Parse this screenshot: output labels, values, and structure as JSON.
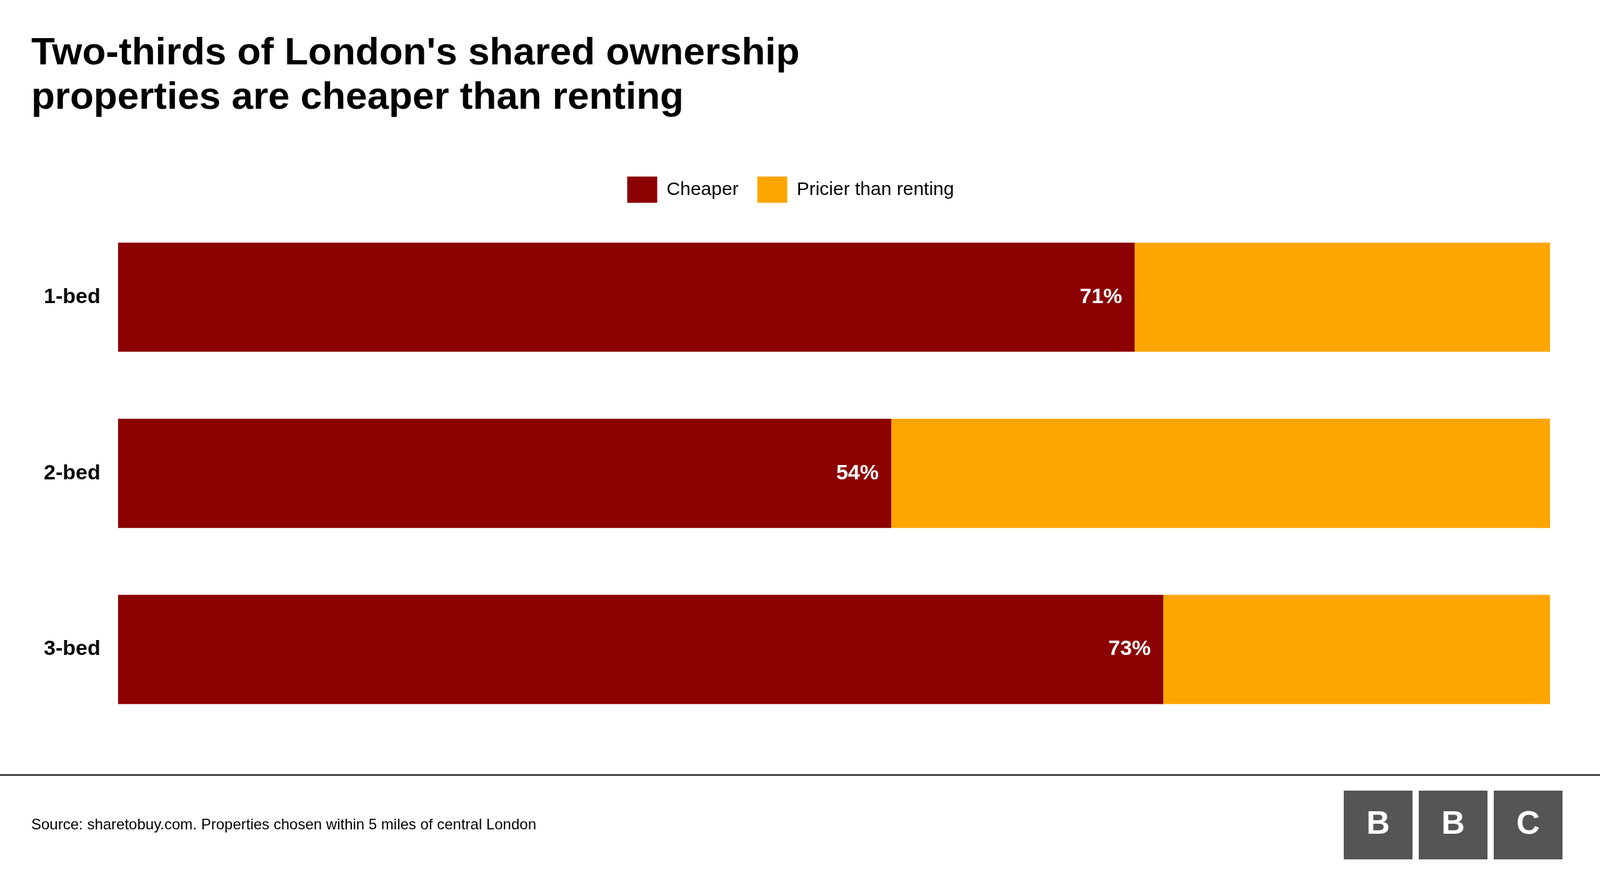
{
  "chart_data": {
    "type": "bar",
    "orientation": "horizontal",
    "stacked": true,
    "title": "Two-thirds of London's shared ownership\nproperties are cheaper than renting",
    "categories": [
      "1-bed",
      "2-bed",
      "3-bed"
    ],
    "series": [
      {
        "name": "Cheaper",
        "color": "#8B0000",
        "values": [
          71,
          54,
          73
        ],
        "data_labels": true,
        "value_labels": [
          "71%",
          "54%",
          "73%"
        ]
      },
      {
        "name": "Pricier than renting",
        "color": "#FFA500",
        "values": [
          29,
          46,
          27
        ]
      }
    ],
    "xlim": [
      0,
      100
    ],
    "grid": false,
    "legend": "top",
    "tick_labels": "y",
    "annotations": [
      "Source: sharetobuy.com. Properties chosen within 5 miles of central London",
      "BBC"
    ]
  }
}
